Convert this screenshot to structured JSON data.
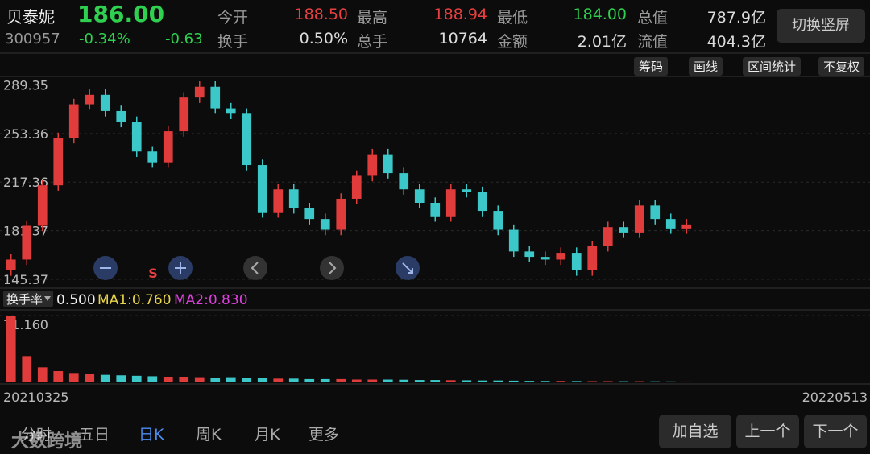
{
  "header": {
    "name": "贝泰妮",
    "code": "300957",
    "price": "186.00",
    "change_pct": "-0.34%",
    "change": "-0.63",
    "stats": [
      {
        "label": "今开",
        "value": "188.50"
      },
      {
        "label": "最高",
        "value": "188.94"
      },
      {
        "label": "最低",
        "value": "184.00"
      },
      {
        "label": "总值",
        "value": "787.9亿"
      },
      {
        "label": "换手",
        "value": "0.50%"
      },
      {
        "label": "总手",
        "value": "10764"
      },
      {
        "label": "金额",
        "value": "2.01亿"
      },
      {
        "label": "流值",
        "value": "404.3亿"
      }
    ],
    "rotate_button": "切换竖屏"
  },
  "toolbar": [
    "筹码",
    "画线",
    "区间统计",
    "不复权"
  ],
  "controls": {
    "signal": "S"
  },
  "chart_data": {
    "type": "candlestick",
    "up_color": "#e03c3c",
    "down_color": "#3cc8c8",
    "ylim": [
      140,
      295
    ],
    "yticks": [
      289.35,
      253.36,
      217.36,
      181.37,
      145.37
    ],
    "date_labels": [
      "20210325",
      "20220513"
    ],
    "open": [
      152,
      160,
      185,
      215,
      250,
      275,
      282,
      270,
      262,
      240,
      232,
      255,
      280,
      288,
      272,
      268,
      230,
      195,
      212,
      198,
      190,
      182,
      205,
      222,
      238,
      224,
      212,
      202,
      192,
      212,
      210,
      196,
      182,
      166,
      162,
      160,
      165,
      152,
      170,
      184,
      180,
      200,
      190,
      183
    ],
    "high": [
      164,
      189,
      219,
      254,
      279,
      286,
      286,
      274,
      266,
      244,
      259,
      284,
      292,
      292,
      276,
      272,
      234,
      216,
      216,
      202,
      194,
      209,
      226,
      242,
      242,
      228,
      216,
      206,
      216,
      216,
      214,
      200,
      186,
      170,
      166,
      169,
      169,
      174,
      188,
      188,
      204,
      204,
      194,
      190
    ],
    "low": [
      148,
      156,
      181,
      211,
      246,
      271,
      266,
      258,
      236,
      228,
      228,
      251,
      276,
      268,
      264,
      226,
      191,
      191,
      194,
      186,
      178,
      178,
      201,
      218,
      220,
      208,
      198,
      188,
      188,
      206,
      192,
      178,
      162,
      158,
      156,
      156,
      148,
      148,
      166,
      176,
      176,
      186,
      179,
      179
    ],
    "close": [
      160,
      185,
      215,
      250,
      275,
      282,
      270,
      262,
      240,
      232,
      255,
      280,
      288,
      272,
      268,
      230,
      195,
      212,
      198,
      190,
      182,
      205,
      222,
      238,
      224,
      212,
      202,
      192,
      212,
      210,
      196,
      182,
      166,
      162,
      160,
      165,
      152,
      170,
      184,
      180,
      200,
      190,
      183,
      186
    ]
  },
  "indicator": {
    "name": "换手率",
    "value": "0.500",
    "ma1": "MA1:0.760",
    "ma2": "MA2:0.830",
    "ylim": [
      0,
      71.16
    ],
    "yticks": [
      {
        "value": 71.16,
        "label": "71.160"
      }
    ],
    "values": [
      71.16,
      28,
      16,
      12,
      10,
      9,
      8,
      7.5,
      7,
      6.5,
      6,
      6,
      5.5,
      5,
      5.5,
      5,
      4.5,
      4,
      4,
      3.5,
      3.5,
      3.5,
      3,
      3,
      3,
      2.8,
      2.5,
      2.5,
      2.3,
      2.2,
      2,
      2,
      1.8,
      1.6,
      1.5,
      1.5,
      1.4,
      1.3,
      1.3,
      1.2,
      1.2,
      1.1,
      1,
      0.9
    ]
  },
  "tabs": [
    "分时",
    "五日",
    "日K",
    "周K",
    "月K",
    "更多"
  ],
  "buttons": [
    "加自选",
    "上一个",
    "下一个"
  ],
  "watermark": "大数跨境"
}
